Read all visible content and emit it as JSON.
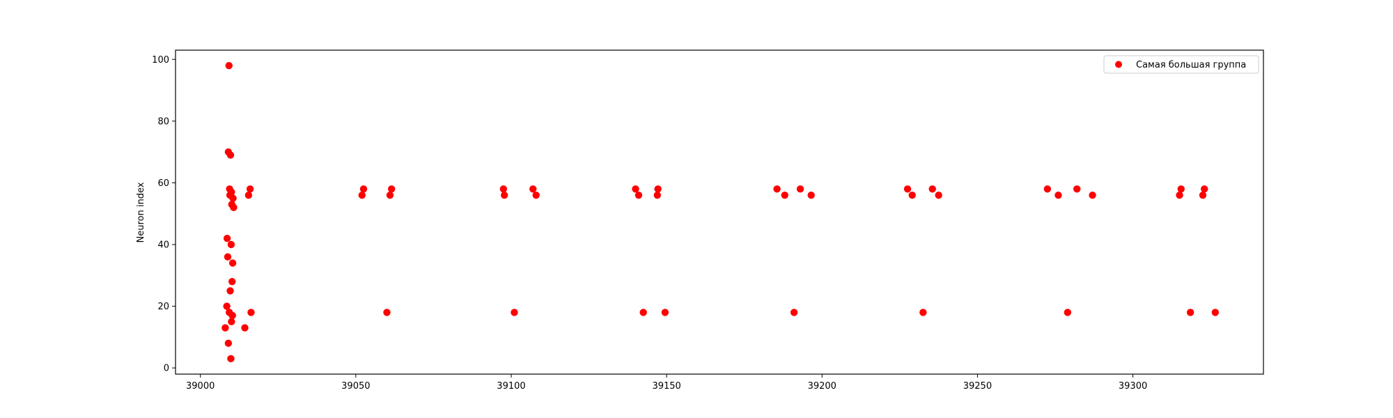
{
  "chart_data": {
    "type": "scatter",
    "title": "",
    "xlabel": "",
    "ylabel": "Neuron index",
    "xlim": [
      38992,
      39342
    ],
    "ylim": [
      -2,
      103
    ],
    "xticks": [
      39000,
      39050,
      39100,
      39150,
      39200,
      39250,
      39300
    ],
    "yticks": [
      0,
      20,
      40,
      60,
      80,
      100
    ],
    "grid": false,
    "legend_position": "top-right",
    "series": [
      {
        "name": "Самая большая группа",
        "color": "#ff0000",
        "points": [
          [
            39008,
            13
          ],
          [
            39008.5,
            20
          ],
          [
            39008.6,
            42
          ],
          [
            39008.8,
            36
          ],
          [
            39009,
            70
          ],
          [
            39009.2,
            98
          ],
          [
            39009,
            8
          ],
          [
            39009.3,
            18
          ],
          [
            39009.4,
            58
          ],
          [
            39009.5,
            56
          ],
          [
            39009.6,
            25
          ],
          [
            39009.7,
            69
          ],
          [
            39009.8,
            3
          ],
          [
            39009.9,
            40
          ],
          [
            39010,
            15
          ],
          [
            39010,
            57
          ],
          [
            39010.1,
            53
          ],
          [
            39010.2,
            28
          ],
          [
            39010.3,
            17
          ],
          [
            39010.4,
            34
          ],
          [
            39010.5,
            55
          ],
          [
            39010.7,
            52
          ],
          [
            39014.3,
            13
          ],
          [
            39015.5,
            56
          ],
          [
            39016,
            58
          ],
          [
            39016.3,
            18
          ],
          [
            39052,
            56
          ],
          [
            39052.5,
            58
          ],
          [
            39060,
            18
          ],
          [
            39061,
            56
          ],
          [
            39061.5,
            58
          ],
          [
            39097.5,
            58
          ],
          [
            39097.8,
            56
          ],
          [
            39101,
            18
          ],
          [
            39107,
            58
          ],
          [
            39108,
            56
          ],
          [
            39140,
            58
          ],
          [
            39141,
            56
          ],
          [
            39142.5,
            18
          ],
          [
            39147,
            56
          ],
          [
            39147.2,
            58
          ],
          [
            39149.5,
            18
          ],
          [
            39185.5,
            58
          ],
          [
            39188,
            56
          ],
          [
            39191,
            18
          ],
          [
            39193,
            58
          ],
          [
            39196.5,
            56
          ],
          [
            39227.5,
            58
          ],
          [
            39229,
            56
          ],
          [
            39232.5,
            18
          ],
          [
            39235.5,
            58
          ],
          [
            39237.5,
            56
          ],
          [
            39272.5,
            58
          ],
          [
            39276,
            56
          ],
          [
            39279,
            18
          ],
          [
            39282,
            58
          ],
          [
            39287,
            56
          ],
          [
            39315,
            56
          ],
          [
            39315.5,
            58
          ],
          [
            39318.5,
            18
          ],
          [
            39322.5,
            56
          ],
          [
            39323,
            58
          ],
          [
            39326.5,
            18
          ]
        ]
      }
    ]
  }
}
